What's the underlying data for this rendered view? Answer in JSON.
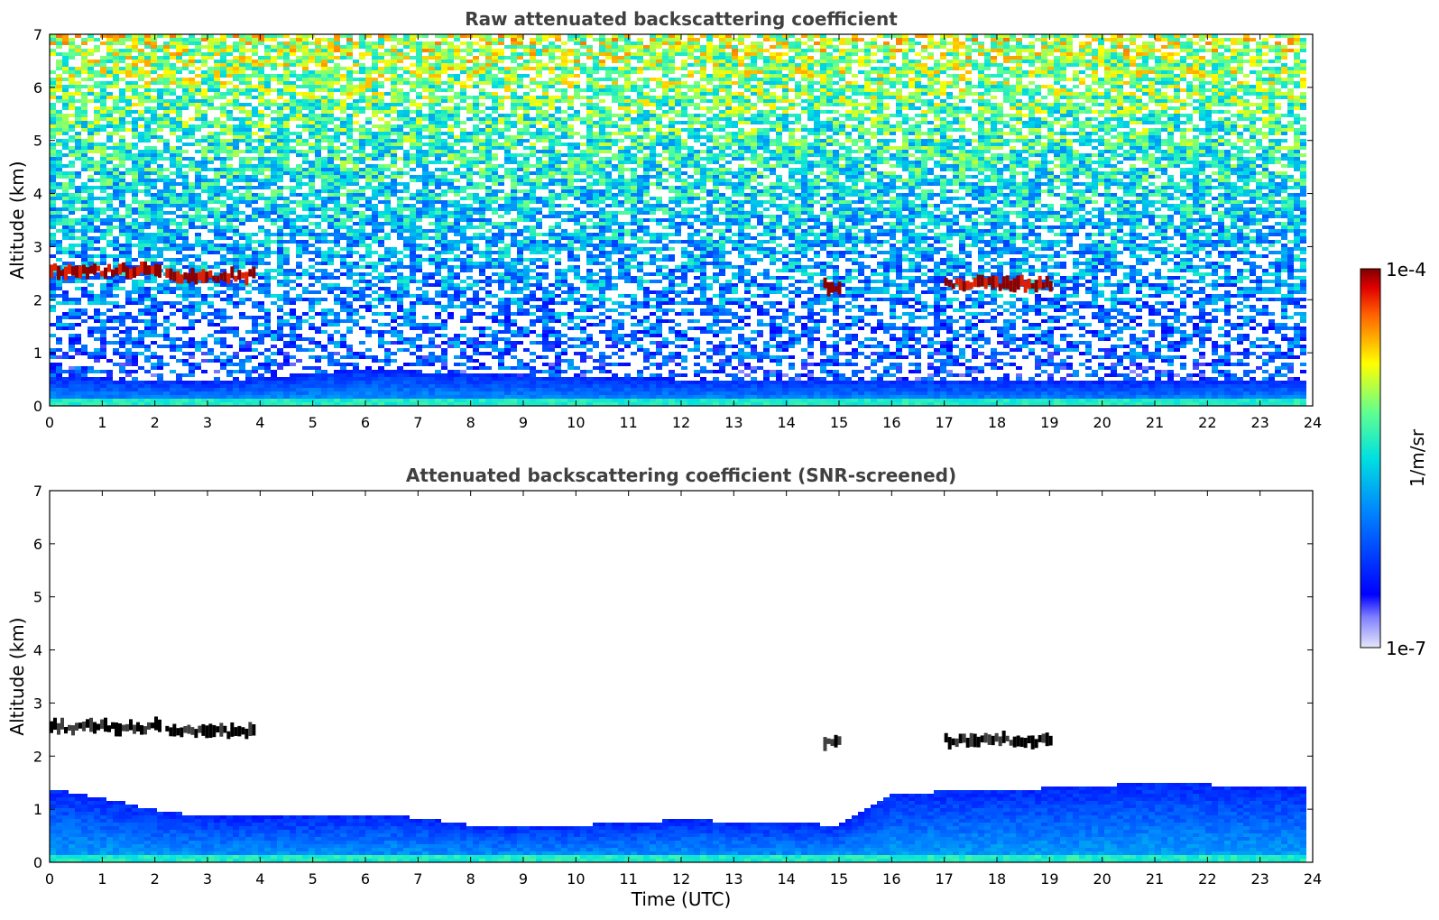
{
  "chart_data": [
    {
      "type": "heatmap",
      "title": "Raw attenuated backscattering coefficient",
      "xlabel": "",
      "ylabel": "Altitude (km)",
      "xlim": [
        0,
        24
      ],
      "ylim": [
        0,
        7
      ],
      "x_ticks": [
        "0",
        "1",
        "2",
        "3",
        "4",
        "5",
        "6",
        "7",
        "8",
        "9",
        "10",
        "11",
        "12",
        "13",
        "14",
        "15",
        "16",
        "17",
        "18",
        "19",
        "20",
        "21",
        "22",
        "23",
        "24"
      ],
      "y_ticks": [
        "0",
        "1",
        "2",
        "3",
        "4",
        "5",
        "6",
        "7"
      ],
      "data_extent_hours": [
        0,
        23.8
      ],
      "boundary_layer_top_km": [
        [
          0,
          0.55
        ],
        [
          3,
          0.45
        ],
        [
          6,
          0.7
        ],
        [
          8,
          0.6
        ],
        [
          10,
          0.55
        ],
        [
          12,
          0.5
        ],
        [
          16,
          0.5
        ],
        [
          20,
          0.45
        ],
        [
          23.8,
          0.5
        ]
      ],
      "cloud_layers": [
        {
          "start": 0.0,
          "end": 2.1,
          "altitude_km": 2.55
        },
        {
          "start": 2.2,
          "end": 3.9,
          "altitude_km": 2.45
        },
        {
          "start": 14.7,
          "end": 15.0,
          "altitude_km": 2.25
        },
        {
          "start": 17.0,
          "end": 19.0,
          "altitude_km": 2.3
        }
      ],
      "noise": "high above 2 km"
    },
    {
      "type": "heatmap",
      "title": "Attenuated backscattering coefficient (SNR-screened)",
      "xlabel": "Time (UTC)",
      "ylabel": "Altitude (km)",
      "xlim": [
        0,
        24
      ],
      "ylim": [
        0,
        7
      ],
      "x_ticks": [
        "0",
        "1",
        "2",
        "3",
        "4",
        "5",
        "6",
        "7",
        "8",
        "9",
        "10",
        "11",
        "12",
        "13",
        "14",
        "15",
        "16",
        "17",
        "18",
        "19",
        "20",
        "21",
        "22",
        "23",
        "24"
      ],
      "y_ticks": [
        "0",
        "1",
        "2",
        "3",
        "4",
        "5",
        "6",
        "7"
      ],
      "data_extent_hours": [
        0,
        23.8
      ],
      "aerosol_layer_top_km": [
        [
          0,
          1.4
        ],
        [
          2,
          1.0
        ],
        [
          3,
          0.85
        ],
        [
          5,
          0.85
        ],
        [
          6.5,
          0.9
        ],
        [
          8,
          0.7
        ],
        [
          10,
          0.7
        ],
        [
          12,
          0.8
        ],
        [
          15,
          0.7
        ],
        [
          16,
          1.3
        ],
        [
          19,
          1.4
        ],
        [
          21,
          1.5
        ],
        [
          23.8,
          1.4
        ]
      ],
      "cloud_layers": [
        {
          "start": 0.0,
          "end": 2.1,
          "altitude_km": 2.55
        },
        {
          "start": 2.2,
          "end": 3.9,
          "altitude_km": 2.45
        },
        {
          "start": 14.7,
          "end": 15.0,
          "altitude_km": 2.25
        },
        {
          "start": 17.0,
          "end": 19.0,
          "altitude_km": 2.3
        }
      ],
      "noise": "screened out"
    }
  ],
  "colorbar": {
    "max_label": "1e-4",
    "min_label": "1e-7",
    "unit_label": "1/m/sr",
    "scale": "log"
  }
}
